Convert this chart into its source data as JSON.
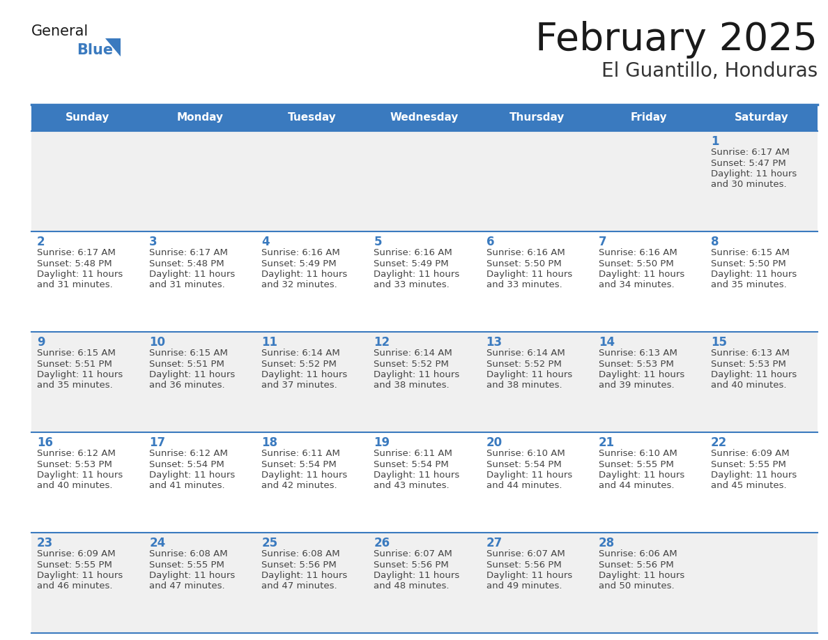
{
  "title": "February 2025",
  "subtitle": "El Guantillo, Honduras",
  "header_bg": "#3a7abf",
  "header_text_color": "#ffffff",
  "cell_bg_odd": "#f0f0f0",
  "cell_bg_even": "#ffffff",
  "day_number_color": "#3a7abf",
  "text_color": "#444444",
  "border_color": "#3a7abf",
  "days_of_week": [
    "Sunday",
    "Monday",
    "Tuesday",
    "Wednesday",
    "Thursday",
    "Friday",
    "Saturday"
  ],
  "weeks": [
    [
      {
        "day": null,
        "info": null
      },
      {
        "day": null,
        "info": null
      },
      {
        "day": null,
        "info": null
      },
      {
        "day": null,
        "info": null
      },
      {
        "day": null,
        "info": null
      },
      {
        "day": null,
        "info": null
      },
      {
        "day": 1,
        "info": "Sunrise: 6:17 AM\nSunset: 5:47 PM\nDaylight: 11 hours\nand 30 minutes."
      }
    ],
    [
      {
        "day": 2,
        "info": "Sunrise: 6:17 AM\nSunset: 5:48 PM\nDaylight: 11 hours\nand 31 minutes."
      },
      {
        "day": 3,
        "info": "Sunrise: 6:17 AM\nSunset: 5:48 PM\nDaylight: 11 hours\nand 31 minutes."
      },
      {
        "day": 4,
        "info": "Sunrise: 6:16 AM\nSunset: 5:49 PM\nDaylight: 11 hours\nand 32 minutes."
      },
      {
        "day": 5,
        "info": "Sunrise: 6:16 AM\nSunset: 5:49 PM\nDaylight: 11 hours\nand 33 minutes."
      },
      {
        "day": 6,
        "info": "Sunrise: 6:16 AM\nSunset: 5:50 PM\nDaylight: 11 hours\nand 33 minutes."
      },
      {
        "day": 7,
        "info": "Sunrise: 6:16 AM\nSunset: 5:50 PM\nDaylight: 11 hours\nand 34 minutes."
      },
      {
        "day": 8,
        "info": "Sunrise: 6:15 AM\nSunset: 5:50 PM\nDaylight: 11 hours\nand 35 minutes."
      }
    ],
    [
      {
        "day": 9,
        "info": "Sunrise: 6:15 AM\nSunset: 5:51 PM\nDaylight: 11 hours\nand 35 minutes."
      },
      {
        "day": 10,
        "info": "Sunrise: 6:15 AM\nSunset: 5:51 PM\nDaylight: 11 hours\nand 36 minutes."
      },
      {
        "day": 11,
        "info": "Sunrise: 6:14 AM\nSunset: 5:52 PM\nDaylight: 11 hours\nand 37 minutes."
      },
      {
        "day": 12,
        "info": "Sunrise: 6:14 AM\nSunset: 5:52 PM\nDaylight: 11 hours\nand 38 minutes."
      },
      {
        "day": 13,
        "info": "Sunrise: 6:14 AM\nSunset: 5:52 PM\nDaylight: 11 hours\nand 38 minutes."
      },
      {
        "day": 14,
        "info": "Sunrise: 6:13 AM\nSunset: 5:53 PM\nDaylight: 11 hours\nand 39 minutes."
      },
      {
        "day": 15,
        "info": "Sunrise: 6:13 AM\nSunset: 5:53 PM\nDaylight: 11 hours\nand 40 minutes."
      }
    ],
    [
      {
        "day": 16,
        "info": "Sunrise: 6:12 AM\nSunset: 5:53 PM\nDaylight: 11 hours\nand 40 minutes."
      },
      {
        "day": 17,
        "info": "Sunrise: 6:12 AM\nSunset: 5:54 PM\nDaylight: 11 hours\nand 41 minutes."
      },
      {
        "day": 18,
        "info": "Sunrise: 6:11 AM\nSunset: 5:54 PM\nDaylight: 11 hours\nand 42 minutes."
      },
      {
        "day": 19,
        "info": "Sunrise: 6:11 AM\nSunset: 5:54 PM\nDaylight: 11 hours\nand 43 minutes."
      },
      {
        "day": 20,
        "info": "Sunrise: 6:10 AM\nSunset: 5:54 PM\nDaylight: 11 hours\nand 44 minutes."
      },
      {
        "day": 21,
        "info": "Sunrise: 6:10 AM\nSunset: 5:55 PM\nDaylight: 11 hours\nand 44 minutes."
      },
      {
        "day": 22,
        "info": "Sunrise: 6:09 AM\nSunset: 5:55 PM\nDaylight: 11 hours\nand 45 minutes."
      }
    ],
    [
      {
        "day": 23,
        "info": "Sunrise: 6:09 AM\nSunset: 5:55 PM\nDaylight: 11 hours\nand 46 minutes."
      },
      {
        "day": 24,
        "info": "Sunrise: 6:08 AM\nSunset: 5:55 PM\nDaylight: 11 hours\nand 47 minutes."
      },
      {
        "day": 25,
        "info": "Sunrise: 6:08 AM\nSunset: 5:56 PM\nDaylight: 11 hours\nand 47 minutes."
      },
      {
        "day": 26,
        "info": "Sunrise: 6:07 AM\nSunset: 5:56 PM\nDaylight: 11 hours\nand 48 minutes."
      },
      {
        "day": 27,
        "info": "Sunrise: 6:07 AM\nSunset: 5:56 PM\nDaylight: 11 hours\nand 49 minutes."
      },
      {
        "day": 28,
        "info": "Sunrise: 6:06 AM\nSunset: 5:56 PM\nDaylight: 11 hours\nand 50 minutes."
      },
      {
        "day": null,
        "info": null
      }
    ]
  ],
  "figsize": [
    11.88,
    9.18
  ],
  "dpi": 100
}
